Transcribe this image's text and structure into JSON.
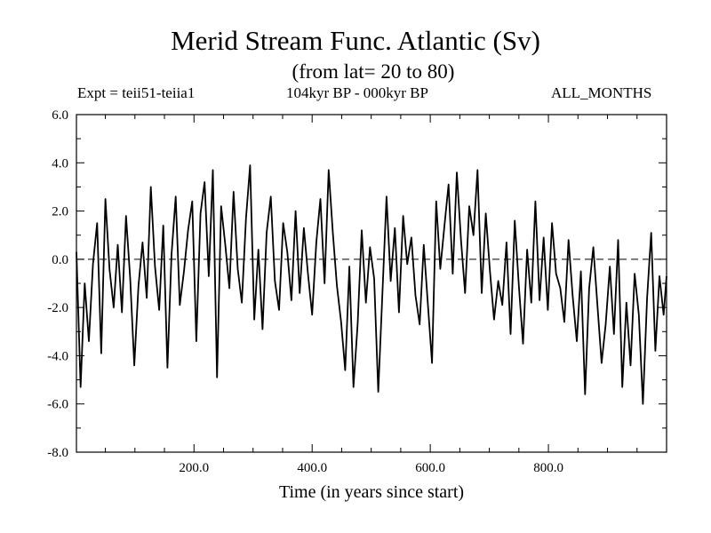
{
  "header": {
    "title": "Merid Stream Func. Atlantic (Sv)",
    "subtitle": "(from lat= 20 to 80)",
    "expt": "Expt = teii51-teiia1",
    "period": "104kyr BP - 000kyr BP",
    "months": "ALL_MONTHS"
  },
  "chart_data": {
    "type": "line",
    "title": "Merid Stream Func. Atlantic (Sv)",
    "subtitle": "(from lat= 20 to 80)",
    "xlabel": "Time (in years since start)",
    "ylabel": "",
    "xlim": [
      1,
      1000
    ],
    "ylim": [
      -8.0,
      6.0
    ],
    "x_ticks": [
      200,
      400,
      600,
      800
    ],
    "x_tick_labels": [
      "200.0",
      "400.0",
      "600.0",
      "800.0"
    ],
    "y_ticks": [
      -8,
      -6,
      -4,
      -2,
      0,
      2,
      4,
      6
    ],
    "y_tick_labels": [
      "-8.0",
      "-6.0",
      "-4.0",
      "-2.0",
      "0.0",
      "2.0",
      "4.0",
      "6.0"
    ],
    "reference_line": {
      "y": 0.0,
      "style": "dashed"
    },
    "grid": false,
    "series": [
      {
        "x": [
          1,
          8,
          15,
          22,
          29,
          36,
          43,
          50,
          57,
          64,
          71,
          78,
          85,
          92,
          99,
          106,
          113,
          120,
          127,
          134,
          141,
          148,
          155,
          162,
          169,
          176,
          183,
          190,
          197,
          204,
          211,
          218,
          225,
          232,
          239,
          246,
          253,
          260,
          267,
          274,
          281,
          288,
          295,
          302,
          309,
          316,
          323,
          330,
          337,
          344,
          351,
          358,
          365,
          372,
          379,
          386,
          393,
          400,
          407,
          414,
          421,
          428,
          435,
          442,
          449,
          456,
          463,
          470,
          477,
          484,
          491,
          498,
          505,
          512,
          519,
          526,
          533,
          540,
          547,
          554,
          561,
          568,
          575,
          582,
          589,
          596,
          603,
          610,
          617,
          624,
          631,
          638,
          645,
          652,
          659,
          666,
          673,
          680,
          687,
          694,
          701,
          708,
          715,
          722,
          729,
          736,
          743,
          750,
          757,
          764,
          771,
          778,
          785,
          792,
          799,
          806,
          813,
          820,
          827,
          834,
          841,
          848,
          855,
          862,
          869,
          876,
          883,
          890,
          897,
          904,
          911,
          918,
          925,
          932,
          939,
          946,
          953,
          960,
          967,
          974,
          981,
          988,
          995,
          1000
        ],
        "values": [
          0.3,
          -5.3,
          -1.0,
          -3.4,
          -0.2,
          1.5,
          -3.9,
          2.5,
          -0.4,
          -2.0,
          0.6,
          -2.2,
          1.8,
          -0.8,
          -4.4,
          -1.1,
          0.7,
          -1.6,
          3.0,
          -0.3,
          -2.1,
          1.4,
          -4.5,
          0.2,
          2.6,
          -1.9,
          -0.5,
          1.2,
          2.4,
          -3.4,
          1.9,
          3.2,
          -0.7,
          3.7,
          -4.9,
          2.2,
          0.6,
          -1.2,
          2.8,
          -0.4,
          -1.8,
          1.7,
          3.9,
          -2.5,
          0.4,
          -2.9,
          1.1,
          2.6,
          -0.9,
          -2.1,
          1.5,
          0.3,
          -1.7,
          2.0,
          -1.4,
          1.3,
          -0.6,
          -2.3,
          0.7,
          2.5,
          -1.0,
          3.7,
          1.1,
          -1.1,
          -2.6,
          -4.6,
          -0.3,
          -5.3,
          -2.7,
          1.2,
          -1.8,
          0.5,
          -0.8,
          -5.5,
          -1.4,
          2.6,
          -0.9,
          1.3,
          -2.2,
          1.8,
          -0.2,
          0.9,
          -1.5,
          -2.7,
          0.6,
          -1.9,
          -4.3,
          2.4,
          -0.4,
          1.4,
          3.1,
          -0.6,
          3.6,
          0.8,
          -1.4,
          2.2,
          1.0,
          3.7,
          -1.4,
          1.9,
          -0.5,
          -2.5,
          -0.9,
          -1.9,
          0.7,
          -3.1,
          1.6,
          -1.1,
          -3.5,
          0.4,
          -1.8,
          2.4,
          -1.7,
          0.9,
          -2.1,
          1.5,
          -0.6,
          -1.2,
          -2.6,
          0.8,
          -1.5,
          -3.4,
          -0.5,
          -5.6,
          -1.2,
          0.5,
          -1.9,
          -4.3,
          -2.7,
          -0.3,
          -3.1,
          0.8,
          -5.3,
          -1.8,
          -4.4,
          -0.6,
          -2.3,
          -6.0,
          -1.6,
          1.1,
          -3.8,
          -0.7,
          -2.3,
          -0.7
        ]
      }
    ]
  }
}
